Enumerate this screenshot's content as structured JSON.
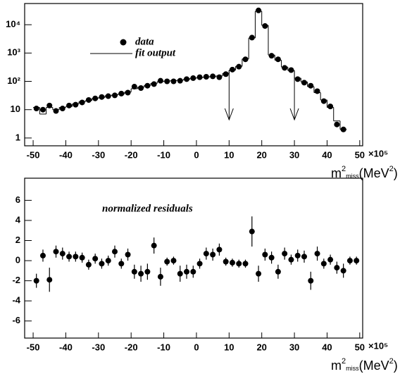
{
  "chart_data": [
    {
      "type": "scatter",
      "log_y": true,
      "x": [
        -49,
        -47,
        -45,
        -43,
        -41,
        -39,
        -37,
        -35,
        -33,
        -31,
        -29,
        -27,
        -25,
        -23,
        -21,
        -19,
        -17,
        -15,
        -13,
        -11,
        -9,
        -7,
        -5,
        -3,
        -1,
        1,
        3,
        5,
        7,
        9,
        11,
        13,
        15,
        17,
        19,
        21,
        23,
        25,
        27,
        29,
        31,
        33,
        35,
        37,
        39,
        41,
        43,
        45
      ],
      "series": [
        {
          "name": "data",
          "color": "#000000",
          "values": [
            11,
            10,
            14,
            9,
            11,
            14,
            15,
            18,
            22,
            25,
            28,
            30,
            32,
            37,
            40,
            65,
            58,
            70,
            80,
            105,
            100,
            100,
            105,
            120,
            130,
            140,
            145,
            150,
            140,
            180,
            260,
            330,
            600,
            3500,
            32000,
            9000,
            800,
            600,
            300,
            250,
            120,
            90,
            70,
            45,
            20,
            13,
            3,
            2
          ]
        },
        {
          "name": "fit output",
          "color": "#000000",
          "values": [
            12,
            7,
            12,
            10,
            12,
            13,
            16,
            19,
            21,
            25,
            27,
            31,
            33,
            36,
            42,
            55,
            62,
            72,
            85,
            98,
            102,
            106,
            110,
            118,
            128,
            135,
            142,
            148,
            155,
            190,
            250,
            340,
            620,
            3400,
            30000,
            9500,
            850,
            560,
            320,
            240,
            130,
            95,
            65,
            40,
            22,
            12,
            4,
            2
          ]
        }
      ],
      "legend": "top-left",
      "arrows": [
        10,
        30
      ],
      "xlim": [
        -52.6,
        50.9
      ],
      "xticks": [
        -50,
        -40,
        -30,
        -20,
        -10,
        0,
        10,
        20,
        30,
        40,
        50
      ],
      "x_multiplier": "×10⁵",
      "x_label": [
        "m",
        "2",
        "miss",
        "(MeV",
        "2",
        ")"
      ],
      "ylim": [
        0.53,
        56000
      ],
      "yticks": [
        1,
        10,
        {
          "value": 100,
          "label": "10²"
        },
        {
          "value": 1000,
          "label": "10³"
        },
        {
          "value": 10000,
          "label": "10⁴"
        }
      ]
    },
    {
      "type": "scatter",
      "log_y": false,
      "x": [
        -49,
        -47,
        -45,
        -43,
        -41,
        -39,
        -37,
        -35,
        -33,
        -31,
        -29,
        -27,
        -25,
        -23,
        -21,
        -19,
        -17,
        -15,
        -13,
        -11,
        -9,
        -7,
        -5,
        -3,
        -1,
        1,
        3,
        5,
        7,
        9,
        11,
        13,
        15,
        17,
        19,
        21,
        23,
        25,
        27,
        29,
        31,
        33,
        35,
        37,
        39,
        41,
        43,
        45,
        47,
        49
      ],
      "series": [
        {
          "name": "normalized residuals",
          "color": "#000000",
          "values": [
            -2.0,
            0.5,
            -1.9,
            0.9,
            0.7,
            0.4,
            0.4,
            0.3,
            -0.4,
            0.2,
            -0.3,
            0.0,
            0.9,
            -0.3,
            0.6,
            -1.1,
            -1.3,
            -1.1,
            1.5,
            -1.6,
            -0.1,
            0.0,
            -1.3,
            -1.1,
            -1.1,
            -0.3,
            0.7,
            0.6,
            1.1,
            -0.1,
            -0.2,
            -0.3,
            -0.3,
            2.9,
            -1.3,
            0.6,
            0.3,
            -1.1,
            0.7,
            0.1,
            0.5,
            0.4,
            -2.0,
            0.7,
            -0.3,
            0.1,
            -0.7,
            -1.0,
            0.0,
            0.0
          ],
          "errors": [
            0.7,
            0.6,
            1.2,
            0.6,
            0.6,
            0.5,
            0.5,
            0.5,
            0.5,
            0.5,
            0.5,
            0.5,
            0.6,
            0.5,
            0.6,
            0.7,
            0.8,
            0.8,
            0.8,
            0.9,
            0.4,
            0.4,
            0.8,
            0.7,
            0.6,
            0.5,
            0.6,
            0.6,
            0.6,
            0.4,
            0.4,
            0.4,
            0.4,
            1.5,
            0.8,
            0.6,
            0.6,
            0.7,
            0.6,
            0.5,
            0.6,
            0.6,
            0.9,
            0.7,
            0.5,
            0.5,
            0.6,
            0.7,
            0.4,
            0.4
          ]
        }
      ],
      "annotation": "normalized residuals",
      "xlim": [
        -52.6,
        50.9
      ],
      "xticks": [
        -50,
        -40,
        -30,
        -20,
        -10,
        0,
        10,
        20,
        30,
        40,
        50
      ],
      "x_multiplier": "×10⁵",
      "x_label": [
        "m",
        "2",
        "miss",
        "(MeV",
        "2",
        ")"
      ],
      "ylim": [
        -7.7,
        8.2
      ],
      "yticks": [
        -6,
        -4,
        -2,
        0,
        2,
        4,
        6
      ]
    }
  ]
}
